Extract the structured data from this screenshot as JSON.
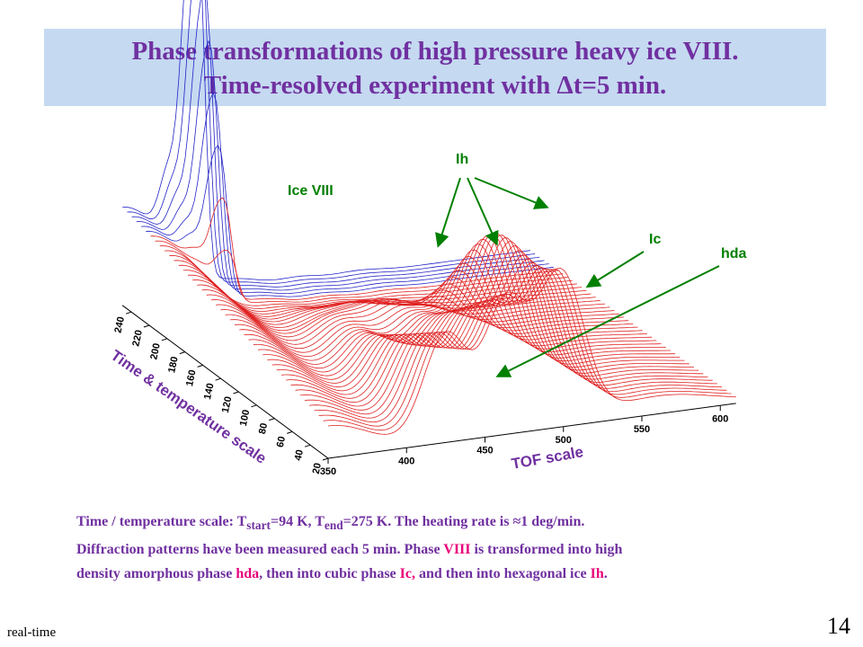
{
  "slide": {
    "title_line1": "Phase transformations of high pressure heavy ice VIII.",
    "title_line2_prefix": "Time-resolved experiment with ",
    "title_line2_delta": "Δ",
    "title_line2_suffix": "t=5 min.",
    "footer_left": "real-time",
    "page_number": "14"
  },
  "caption": {
    "l1_a": "Time / temperature scale: T",
    "l1_sub_start": "start",
    "l1_b": "=94 K, T",
    "l1_sub_end": "end",
    "l1_c": "=275 K. The heating rate is ≈1 deg/min.",
    "l2_a": "Diffraction patterns have been measured each 5 min. Phase ",
    "l2_viii": "VIII",
    "l2_b": " is transformed into high",
    "l3_a": "density amorphous phase ",
    "l3_hda": "hda",
    "l3_b": ", then into cubic phase ",
    "l3_ic": "Ic,",
    "l3_c": " and then into hexagonal ice ",
    "l3_ih": "Ih",
    "l3_d": "."
  },
  "chart_data": {
    "type": "waterfall",
    "x_axis": {
      "label": "TOF scale",
      "ticks": [
        350,
        400,
        450,
        500,
        550,
        600
      ],
      "range": [
        350,
        610
      ]
    },
    "y_axis": {
      "label": "Time & temperature scale",
      "ticks": [
        20,
        40,
        60,
        80,
        100,
        120,
        140,
        160,
        180,
        200,
        220,
        240
      ],
      "range": [
        20,
        250
      ]
    },
    "annotations": [
      {
        "text": "Ice VIII",
        "color": "#008000"
      },
      {
        "text": "Ih",
        "color": "#008000"
      },
      {
        "text": "Ic",
        "color": "#008000"
      },
      {
        "text": "hda",
        "color": "#008000"
      }
    ],
    "colors": {
      "early_traces": "#2323c8",
      "late_traces": "#e02020",
      "annotation": "#008000",
      "arrow": "#008000"
    },
    "traces": 45,
    "early_trace_count": 6
  }
}
